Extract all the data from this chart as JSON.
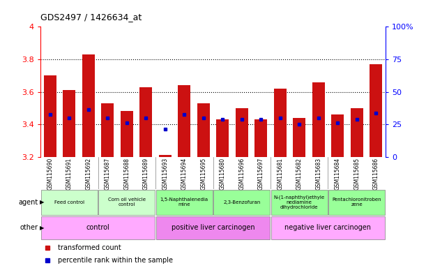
{
  "title": "GDS2497 / 1426634_at",
  "samples": [
    "GSM115690",
    "GSM115691",
    "GSM115692",
    "GSM115687",
    "GSM115688",
    "GSM115689",
    "GSM115693",
    "GSM115694",
    "GSM115695",
    "GSM115680",
    "GSM115696",
    "GSM115697",
    "GSM115681",
    "GSM115682",
    "GSM115683",
    "GSM115684",
    "GSM115685",
    "GSM115686"
  ],
  "bar_values": [
    3.7,
    3.61,
    3.83,
    3.53,
    3.48,
    3.63,
    3.21,
    3.64,
    3.53,
    3.43,
    3.5,
    3.43,
    3.62,
    3.44,
    3.66,
    3.46,
    3.5,
    3.77
  ],
  "blue_markers": [
    3.46,
    3.44,
    3.49,
    3.44,
    3.41,
    3.44,
    3.37,
    3.46,
    3.44,
    3.43,
    3.43,
    3.43,
    3.44,
    3.4,
    3.44,
    3.41,
    3.43,
    3.47
  ],
  "ymin": 3.2,
  "ymax": 4.0,
  "yticks": [
    3.2,
    3.4,
    3.6,
    3.8,
    4.0
  ],
  "ytick_labels_left": [
    "3.2",
    "3.4",
    "3.6",
    "3.8",
    "4"
  ],
  "right_axis_ticks": [
    0,
    25,
    50,
    75,
    100
  ],
  "right_axis_labels": [
    "0",
    "25",
    "50",
    "75",
    "100%"
  ],
  "dotted_lines": [
    3.4,
    3.6,
    3.8
  ],
  "bar_color": "#cc1111",
  "blue_marker_color": "#0000cc",
  "agent_groups": [
    {
      "label": "Feed control",
      "start": 0,
      "end": 3,
      "color": "#ccffcc"
    },
    {
      "label": "Corn oil vehicle\ncontrol",
      "start": 3,
      "end": 6,
      "color": "#ccffcc"
    },
    {
      "label": "1,5-Naphthalenedia\nmine",
      "start": 6,
      "end": 9,
      "color": "#99ff99"
    },
    {
      "label": "2,3-Benzofuran",
      "start": 9,
      "end": 12,
      "color": "#99ff99"
    },
    {
      "label": "N-(1-naphthyl)ethyle\nnediamine\ndihydrochloride",
      "start": 12,
      "end": 15,
      "color": "#99ff99"
    },
    {
      "label": "Pentachloronitroben\nzene",
      "start": 15,
      "end": 18,
      "color": "#99ff99"
    }
  ],
  "other_groups": [
    {
      "label": "control",
      "start": 0,
      "end": 6,
      "color": "#ffaaff"
    },
    {
      "label": "positive liver carcinogen",
      "start": 6,
      "end": 12,
      "color": "#ee88ee"
    },
    {
      "label": "negative liver carcinogen",
      "start": 12,
      "end": 18,
      "color": "#ffaaff"
    }
  ],
  "tick_bg_color": "#cccccc",
  "legend_red_label": "transformed count",
  "legend_blue_label": "percentile rank within the sample"
}
